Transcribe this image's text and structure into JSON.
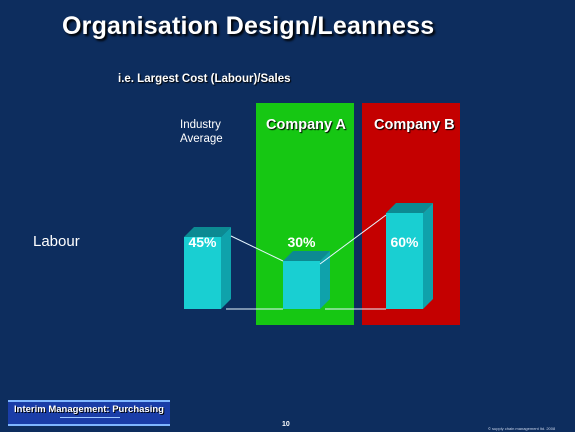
{
  "title": "Organisation Design/Leanness",
  "subtitle": "i.e. Largest Cost (Labour)/Sales",
  "industry_label_line1": "Industry",
  "industry_label_line2": "Average",
  "company_a": "Company A",
  "company_b": "Company B",
  "row_label": "Labour",
  "footer": {
    "logo_text": "Interim Management: Purchasing",
    "page_number": "10",
    "copyright": "© supply chain management ltd. 2008"
  },
  "colors": {
    "background": "#0d2d5e",
    "company_a_panel": "#16c713",
    "company_b_panel": "#c40000",
    "bar_front": "#19cfd2",
    "bar_side": "#0fa2ab",
    "bar_top": "#0c8a92"
  },
  "chart_data": {
    "type": "bar",
    "categories": [
      "Industry Average",
      "Company A",
      "Company B"
    ],
    "values": [
      45,
      30,
      60
    ],
    "labels": [
      "45%",
      "30%",
      "60%"
    ],
    "row_label": "Labour",
    "unit": "%"
  }
}
